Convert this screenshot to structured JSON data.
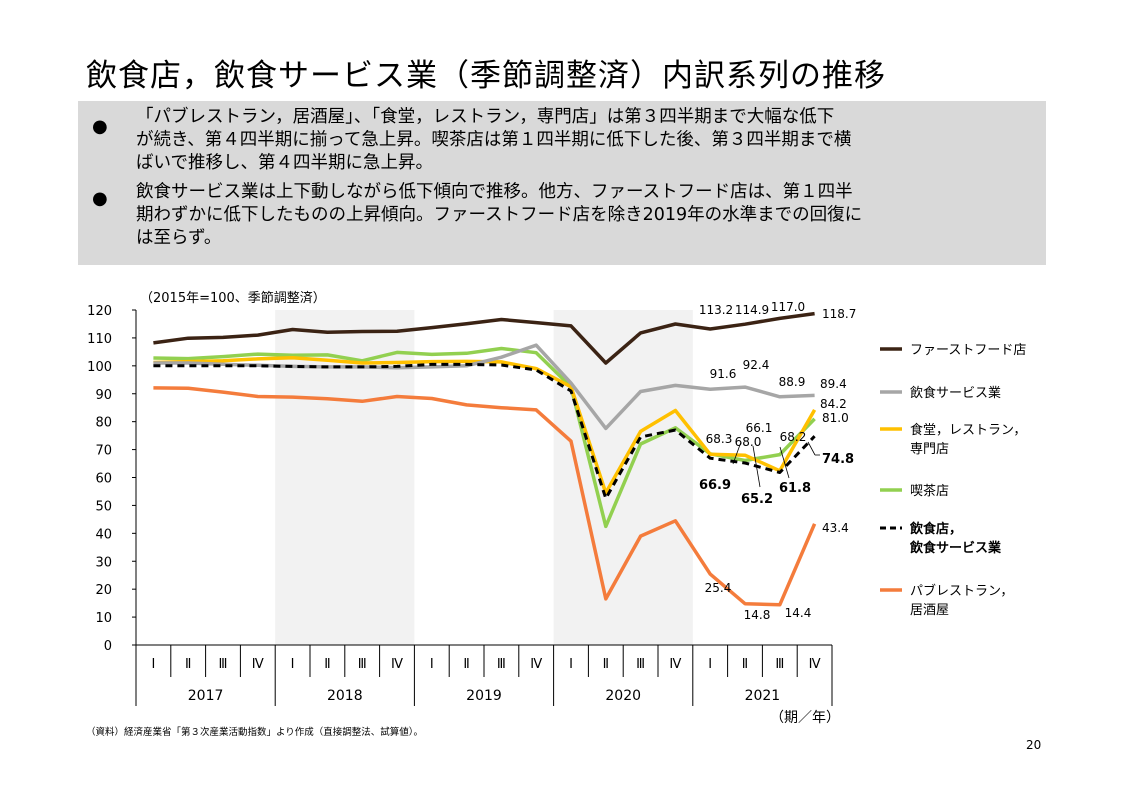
{
  "page": {
    "title": "飲食店，飲食サービス業（季節調整済）内訳系列の推移",
    "bullets": [
      {
        "marker": "●",
        "lines": [
          "「パブレストラン，居酒屋」、「食堂，レストラン，専門店」は第３四半期まで大幅な低下",
          "が続き、第４四半期に揃って急上昇。喫茶店は第１四半期に低下した後、第３四半期まで横",
          "ばいで推移し、第４四半期に急上昇。"
        ]
      },
      {
        "marker": "●",
        "lines": [
          "飲食サービス業は上下動しながら低下傾向で推移。他方、ファーストフード店は、第１四半",
          "期わずかに低下したものの上昇傾向。ファーストフード店を除き2019年の水準までの回復に",
          "は至らず。"
        ]
      }
    ],
    "source": "（資料）経済産業省「第３次産業活動指数」より作成（直接調整法、試算値）。",
    "page_number": "20"
  },
  "chart_data": {
    "type": "line",
    "unit_note": "（2015年=100、季節調整済）",
    "ylim": [
      0,
      120
    ],
    "yticks": [
      0,
      10,
      20,
      30,
      40,
      50,
      60,
      70,
      80,
      90,
      100,
      110,
      120
    ],
    "quarters": [
      "Ⅰ",
      "Ⅱ",
      "Ⅲ",
      "Ⅳ",
      "Ⅰ",
      "Ⅱ",
      "Ⅲ",
      "Ⅳ",
      "Ⅰ",
      "Ⅱ",
      "Ⅲ",
      "Ⅳ",
      "Ⅰ",
      "Ⅱ",
      "Ⅲ",
      "Ⅳ",
      "Ⅰ",
      "Ⅱ",
      "Ⅲ",
      "Ⅳ"
    ],
    "years": [
      "2017",
      "2018",
      "2019",
      "2020",
      "2021"
    ],
    "x_axis_label": "（期／年）",
    "shaded_years": [
      "2018",
      "2020"
    ],
    "series": [
      {
        "name": "ファーストフード店",
        "color": "#3b2314",
        "dash": false,
        "bold": false,
        "values": [
          108.2,
          109.9,
          110.2,
          111.0,
          113.0,
          112.0,
          112.3,
          112.4,
          113.7,
          115.1,
          116.6,
          115.5,
          114.3,
          101.0,
          111.8,
          115.0,
          113.2,
          114.9,
          117.0,
          118.7
        ],
        "labels": [
          {
            "i": 16,
            "text": "113.2"
          },
          {
            "i": 17,
            "text": "114.9"
          },
          {
            "i": 18,
            "text": "117.0"
          },
          {
            "i": 19,
            "text": "118.7"
          }
        ]
      },
      {
        "name": "飲食サービス業",
        "color": "#a6a6a6",
        "dash": false,
        "bold": false,
        "values": [
          101.0,
          101.0,
          100.6,
          100.2,
          99.8,
          99.6,
          99.6,
          99.3,
          99.6,
          100.0,
          103.1,
          107.4,
          93.8,
          77.6,
          90.8,
          93.0,
          91.6,
          92.4,
          88.9,
          89.4
        ],
        "labels": [
          {
            "i": 16,
            "text": "91.6"
          },
          {
            "i": 17,
            "text": "92.4"
          },
          {
            "i": 18,
            "text": "88.9"
          },
          {
            "i": 19,
            "text": "89.4"
          }
        ]
      },
      {
        "name": "食堂，レストラン，専門店",
        "color": "#ffc000",
        "dash": false,
        "bold": false,
        "values": [
          101.2,
          101.5,
          101.8,
          102.5,
          102.9,
          102.0,
          101.0,
          101.2,
          101.5,
          101.6,
          101.4,
          99.0,
          92.5,
          54.5,
          76.5,
          84.0,
          68.3,
          68.0,
          62.4,
          84.2
        ],
        "labels": [
          {
            "i": 16,
            "text": "68.3"
          },
          {
            "i": 17,
            "text": "68.0"
          },
          {
            "i": 19,
            "text": "84.2"
          }
        ]
      },
      {
        "name": "喫茶店",
        "color": "#92d050",
        "dash": false,
        "bold": false,
        "values": [
          102.8,
          102.6,
          103.3,
          104.2,
          103.8,
          103.9,
          101.8,
          104.8,
          104.1,
          104.5,
          106.2,
          104.7,
          92.5,
          42.5,
          72.0,
          77.8,
          68.5,
          66.1,
          68.2,
          81.0
        ],
        "labels": [
          {
            "i": 17,
            "text": "66.1"
          },
          {
            "i": 18,
            "text": "68.2"
          },
          {
            "i": 19,
            "text": "81.0"
          }
        ]
      },
      {
        "name": "飲食店，飲食サービス業",
        "color": "#000000",
        "dash": true,
        "bold": true,
        "values": [
          100.0,
          100.0,
          100.0,
          100.0,
          99.8,
          99.6,
          99.6,
          99.8,
          100.5,
          100.5,
          100.3,
          98.5,
          91.0,
          52.5,
          74.5,
          77.0,
          66.9,
          65.2,
          61.8,
          74.8
        ],
        "labels": [
          {
            "i": 16,
            "text": "66.9"
          },
          {
            "i": 17,
            "text": "65.2"
          },
          {
            "i": 18,
            "text": "61.8"
          },
          {
            "i": 19,
            "text": "74.8"
          }
        ]
      },
      {
        "name": "パブレストラン，居酒屋",
        "color": "#f47c3c",
        "dash": false,
        "bold": false,
        "values": [
          92.1,
          92.0,
          90.6,
          89.0,
          88.8,
          88.2,
          87.3,
          89.0,
          88.3,
          86.0,
          85.0,
          84.2,
          73.0,
          16.5,
          39.0,
          44.5,
          25.4,
          14.8,
          14.4,
          43.4
        ],
        "labels": [
          {
            "i": 16,
            "text": "25.4"
          },
          {
            "i": 17,
            "text": "14.8"
          },
          {
            "i": 18,
            "text": "14.4"
          },
          {
            "i": 19,
            "text": "43.4"
          }
        ]
      }
    ],
    "legend": [
      {
        "series": 0,
        "lines": [
          "ファーストフード店"
        ]
      },
      {
        "series": 1,
        "lines": [
          "飲食サービス業"
        ]
      },
      {
        "series": 2,
        "lines": [
          "食堂，レストラン，",
          "専門店"
        ]
      },
      {
        "series": 3,
        "lines": [
          "喫茶店"
        ]
      },
      {
        "series": 4,
        "lines": [
          "飲食店，",
          "飲食サービス業"
        ]
      },
      {
        "series": 5,
        "lines": [
          "パブレストラン，",
          "居酒屋"
        ]
      }
    ]
  }
}
